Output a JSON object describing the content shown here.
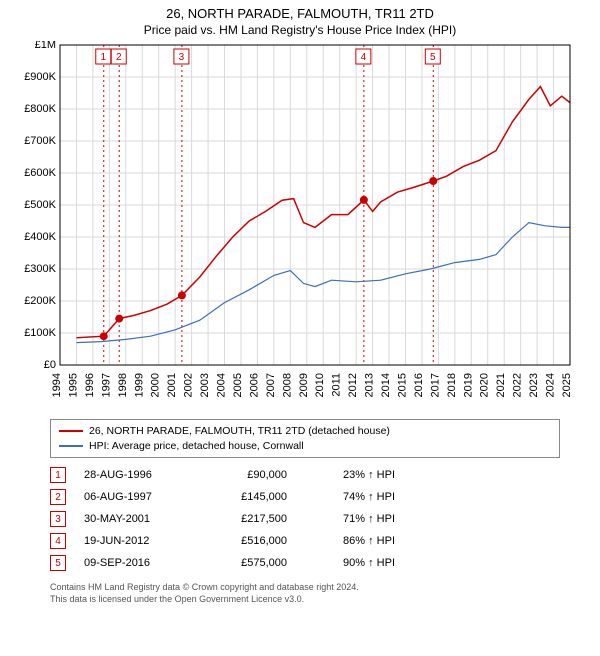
{
  "title": "26, NORTH PARADE, FALMOUTH, TR11 2TD",
  "subtitle": "Price paid vs. HM Land Registry's House Price Index (HPI)",
  "chart": {
    "type": "line",
    "background_color": "#ffffff",
    "grid_color": "#d9d9d9",
    "axis_color": "#000000",
    "label_fontsize": 11,
    "x_min": 1994,
    "x_max": 2025,
    "x_ticks": [
      1994,
      1995,
      1996,
      1997,
      1998,
      1999,
      2000,
      2001,
      2002,
      2003,
      2004,
      2005,
      2006,
      2007,
      2008,
      2009,
      2010,
      2011,
      2012,
      2013,
      2014,
      2015,
      2016,
      2017,
      2018,
      2019,
      2020,
      2021,
      2022,
      2023,
      2024,
      2025
    ],
    "y_min": 0,
    "y_max": 1000000,
    "y_tick_step": 100000,
    "y_tick_labels": [
      "£0",
      "£100K",
      "£200K",
      "£300K",
      "£400K",
      "£500K",
      "£600K",
      "£700K",
      "£800K",
      "£900K",
      "£1M"
    ],
    "series": [
      {
        "name": "property",
        "label": "26, NORTH PARADE, FALMOUTH, TR11 2TD (detached house)",
        "color": "#cc0000",
        "line_width": 1.5,
        "points": [
          [
            1995.0,
            85000
          ],
          [
            1996.66,
            90000
          ],
          [
            1997.6,
            145000
          ],
          [
            1998.5,
            155000
          ],
          [
            1999.5,
            170000
          ],
          [
            2000.5,
            190000
          ],
          [
            2001.41,
            217500
          ],
          [
            2002.5,
            275000
          ],
          [
            2003.5,
            340000
          ],
          [
            2004.5,
            400000
          ],
          [
            2005.5,
            450000
          ],
          [
            2006.5,
            480000
          ],
          [
            2007.5,
            515000
          ],
          [
            2008.2,
            520000
          ],
          [
            2008.8,
            445000
          ],
          [
            2009.5,
            430000
          ],
          [
            2010.5,
            470000
          ],
          [
            2011.5,
            470000
          ],
          [
            2012.47,
            516000
          ],
          [
            2013.0,
            480000
          ],
          [
            2013.5,
            510000
          ],
          [
            2014.5,
            540000
          ],
          [
            2015.5,
            555000
          ],
          [
            2016.69,
            575000
          ],
          [
            2017.5,
            590000
          ],
          [
            2018.5,
            620000
          ],
          [
            2019.5,
            640000
          ],
          [
            2020.5,
            670000
          ],
          [
            2021.5,
            760000
          ],
          [
            2022.5,
            830000
          ],
          [
            2023.2,
            870000
          ],
          [
            2023.8,
            810000
          ],
          [
            2024.5,
            840000
          ],
          [
            2025.0,
            820000
          ]
        ],
        "markers": [
          {
            "x": 1996.66,
            "y": 90000
          },
          {
            "x": 1997.6,
            "y": 145000
          },
          {
            "x": 2001.41,
            "y": 217500
          },
          {
            "x": 2012.47,
            "y": 516000
          },
          {
            "x": 2016.69,
            "y": 575000
          }
        ],
        "marker_style": "circle",
        "marker_size": 4,
        "marker_fill": "#cc0000"
      },
      {
        "name": "hpi",
        "label": "HPI: Average price, detached house, Cornwall",
        "color": "#3b6fb6",
        "line_width": 1.2,
        "points": [
          [
            1995.0,
            70000
          ],
          [
            1996.5,
            73000
          ],
          [
            1998.0,
            80000
          ],
          [
            1999.5,
            90000
          ],
          [
            2001.0,
            110000
          ],
          [
            2002.5,
            140000
          ],
          [
            2004.0,
            195000
          ],
          [
            2005.5,
            235000
          ],
          [
            2007.0,
            280000
          ],
          [
            2008.0,
            295000
          ],
          [
            2008.8,
            255000
          ],
          [
            2009.5,
            245000
          ],
          [
            2010.5,
            265000
          ],
          [
            2012.0,
            260000
          ],
          [
            2013.5,
            265000
          ],
          [
            2015.0,
            285000
          ],
          [
            2016.5,
            300000
          ],
          [
            2018.0,
            320000
          ],
          [
            2019.5,
            330000
          ],
          [
            2020.5,
            345000
          ],
          [
            2021.5,
            400000
          ],
          [
            2022.5,
            445000
          ],
          [
            2023.5,
            435000
          ],
          [
            2024.5,
            430000
          ],
          [
            2025.0,
            430000
          ]
        ]
      }
    ],
    "event_lines": {
      "color": "#cc0000",
      "dash": "2,3",
      "width": 1,
      "positions": [
        1996.66,
        1997.6,
        2001.41,
        2012.47,
        2016.69
      ]
    },
    "event_labels": [
      "1",
      "2",
      "3",
      "4",
      "5"
    ]
  },
  "legend": {
    "border_color": "#888888",
    "fontsize": 10.5,
    "items": [
      {
        "color": "#cc0000",
        "label": "26, NORTH PARADE, FALMOUTH, TR11 2TD (detached house)"
      },
      {
        "color": "#3b6fb6",
        "label": "HPI: Average price, detached house, Cornwall"
      }
    ]
  },
  "events": [
    {
      "n": "1",
      "date": "28-AUG-1996",
      "price": "£90,000",
      "pct": "23% ↑ HPI"
    },
    {
      "n": "2",
      "date": "06-AUG-1997",
      "price": "£145,000",
      "pct": "74% ↑ HPI"
    },
    {
      "n": "3",
      "date": "30-MAY-2001",
      "price": "£217,500",
      "pct": "71% ↑ HPI"
    },
    {
      "n": "4",
      "date": "19-JUN-2012",
      "price": "£516,000",
      "pct": "86% ↑ HPI"
    },
    {
      "n": "5",
      "date": "09-SEP-2016",
      "price": "£575,000",
      "pct": "90% ↑ HPI"
    }
  ],
  "footer": {
    "line1": "Contains HM Land Registry data © Crown copyright and database right 2024.",
    "line2": "This data is licensed under the Open Government Licence v3.0."
  },
  "colors": {
    "red": "#cc0000",
    "blue": "#3b6fb6",
    "grid": "#d9d9d9",
    "text": "#000000",
    "footer_text": "#555555"
  }
}
